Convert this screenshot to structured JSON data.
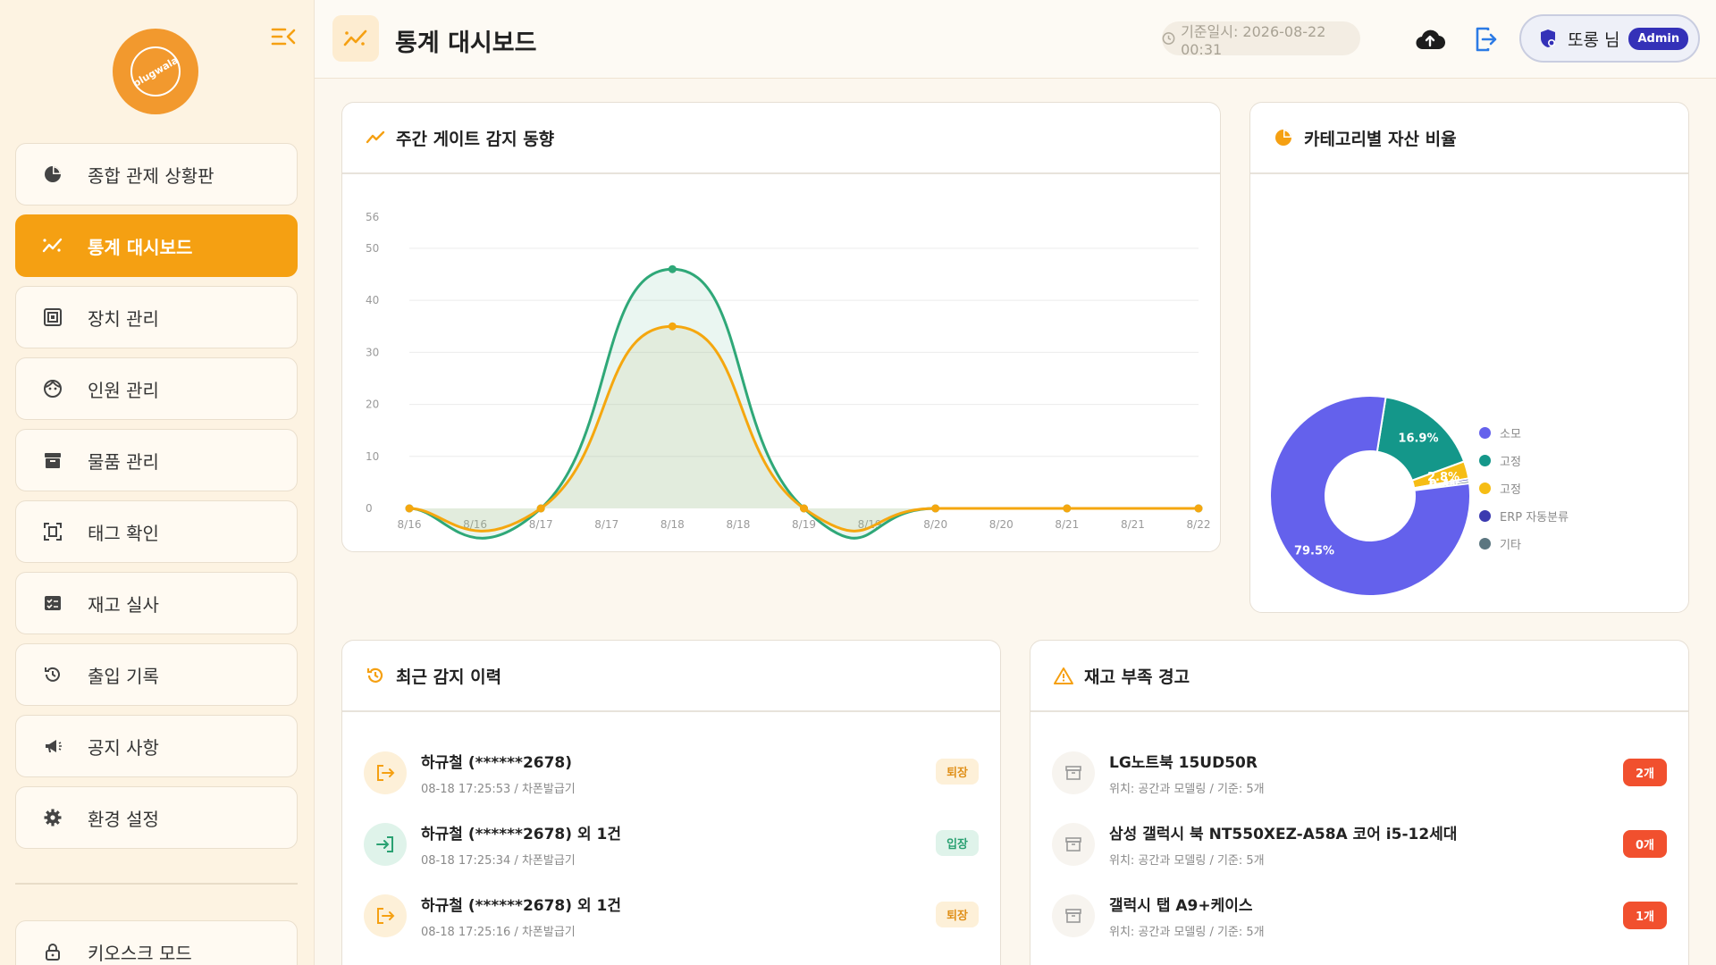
{
  "logo": {
    "text": "plugwala"
  },
  "sidebar": {
    "items": [
      {
        "label": "종합 관제 상황판",
        "icon": "pie-chart-icon",
        "active": false
      },
      {
        "label": "통계 대시보드",
        "icon": "trend-icon",
        "active": true
      },
      {
        "label": "장치 관리",
        "icon": "device-icon",
        "active": false
      },
      {
        "label": "인원 관리",
        "icon": "person-icon",
        "active": false
      },
      {
        "label": "물품 관리",
        "icon": "archive-icon",
        "active": false
      },
      {
        "label": "태그 확인",
        "icon": "tag-scan-icon",
        "active": false
      },
      {
        "label": "재고 실사",
        "icon": "checklist-icon",
        "active": false
      },
      {
        "label": "출입 기록",
        "icon": "history-icon",
        "active": false
      },
      {
        "label": "공지 사항",
        "icon": "megaphone-icon",
        "active": false
      },
      {
        "label": "환경 설정",
        "icon": "gear-icon",
        "active": false
      }
    ],
    "kiosk_label": "키오스크 모드"
  },
  "header": {
    "title": "통계 대시보드",
    "timestamp": "기준일시: 2026-08-22 00:31",
    "user_name": "또롱 님",
    "user_role": "Admin"
  },
  "weekly": {
    "title": "주간 게이트 감지 동향"
  },
  "category": {
    "title": "카테고리별 자산 비율",
    "legend": [
      "소모",
      "고정",
      "고정",
      "ERP 자동분류",
      "기타"
    ]
  },
  "colors": {
    "accent": "#f5a012",
    "line_green": "#2fa878",
    "line_orange": "#f5a70f",
    "pie": [
      "#6461ec",
      "#14978a",
      "#f6bd14",
      "#3b3ab0",
      "#5b7680"
    ]
  },
  "chart_data": [
    {
      "type": "line",
      "title": "주간 게이트 감지 동향",
      "categories": [
        "8/16",
        "8/16",
        "8/17",
        "8/17",
        "8/18",
        "8/18",
        "8/19",
        "8/19",
        "8/20",
        "8/20",
        "8/21",
        "8/21",
        "8/22"
      ],
      "series": [
        {
          "values": [
            0,
            null,
            0,
            null,
            46,
            null,
            0,
            null,
            0,
            null,
            0,
            null,
            0
          ]
        },
        {
          "values": [
            0,
            null,
            0,
            null,
            35,
            null,
            0,
            null,
            0,
            null,
            0,
            null,
            0
          ]
        }
      ],
      "y_ticks": [
        0,
        10,
        20,
        30,
        40,
        50,
        56
      ],
      "ylim": [
        0,
        56
      ],
      "grid": true
    },
    {
      "type": "pie",
      "title": "카테고리별 자산 비율",
      "labels": [
        "소모",
        "고정",
        "고정",
        "ERP 자동분류",
        "기타"
      ],
      "values": [
        79.5,
        16.9,
        2.8,
        0.4,
        0.4
      ],
      "value_labels": [
        "79.5%",
        "16.9%",
        "2.8%",
        "0.4%",
        "0.4%"
      ],
      "legend_position": "right"
    }
  ],
  "recent": {
    "title": "최근 감지 이력",
    "items": [
      {
        "name": "하규철 (******2678)",
        "sub": "08-18 17:25:53 / 차폰발급기",
        "badge": "퇴장",
        "type": "out"
      },
      {
        "name": "하규철 (******2678) 외 1건",
        "sub": "08-18 17:25:34 / 차폰발급기",
        "badge": "입장",
        "type": "in"
      },
      {
        "name": "하규철 (******2678) 외 1건",
        "sub": "08-18 17:25:16 / 차폰발급기",
        "badge": "퇴장",
        "type": "out"
      }
    ]
  },
  "stock": {
    "title": "재고 부족 경고",
    "items": [
      {
        "name": "LG노트북 15UD50R",
        "sub": "위치: 공간과 모델링 / 기준: 5개",
        "badge": "2개"
      },
      {
        "name": "삼성 갤럭시 북 NT550XEZ-A58A 코어 i5-12세대",
        "sub": "위치: 공간과 모델링 / 기준: 5개",
        "badge": "0개"
      },
      {
        "name": "갤럭시 탭 A9+케이스",
        "sub": "위치: 공간과 모델링 / 기준: 5개",
        "badge": "1개"
      }
    ]
  }
}
